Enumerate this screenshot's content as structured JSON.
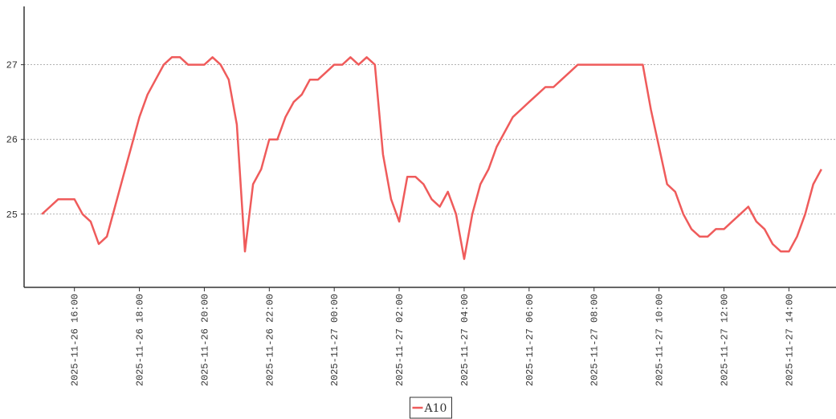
{
  "chart_data": {
    "type": "line",
    "x": [
      "2025-11-26 15:00",
      "2025-11-26 15:15",
      "2025-11-26 15:30",
      "2025-11-26 15:45",
      "2025-11-26 16:00",
      "2025-11-26 16:15",
      "2025-11-26 16:30",
      "2025-11-26 16:45",
      "2025-11-26 17:00",
      "2025-11-26 17:15",
      "2025-11-26 17:30",
      "2025-11-26 17:45",
      "2025-11-26 18:00",
      "2025-11-26 18:15",
      "2025-11-26 18:30",
      "2025-11-26 18:45",
      "2025-11-26 19:00",
      "2025-11-26 19:15",
      "2025-11-26 19:30",
      "2025-11-26 19:45",
      "2025-11-26 20:00",
      "2025-11-26 20:15",
      "2025-11-26 20:30",
      "2025-11-26 20:45",
      "2025-11-26 21:00",
      "2025-11-26 21:15",
      "2025-11-26 21:30",
      "2025-11-26 21:45",
      "2025-11-26 22:00",
      "2025-11-26 22:15",
      "2025-11-26 22:30",
      "2025-11-26 22:45",
      "2025-11-26 23:00",
      "2025-11-26 23:15",
      "2025-11-26 23:30",
      "2025-11-26 23:45",
      "2025-11-27 00:00",
      "2025-11-27 00:15",
      "2025-11-27 00:30",
      "2025-11-27 00:45",
      "2025-11-27 01:00",
      "2025-11-27 01:15",
      "2025-11-27 01:30",
      "2025-11-27 01:45",
      "2025-11-27 02:00",
      "2025-11-27 02:15",
      "2025-11-27 02:30",
      "2025-11-27 02:45",
      "2025-11-27 03:00",
      "2025-11-27 03:15",
      "2025-11-27 03:30",
      "2025-11-27 03:45",
      "2025-11-27 04:00",
      "2025-11-27 04:15",
      "2025-11-27 04:30",
      "2025-11-27 04:45",
      "2025-11-27 05:00",
      "2025-11-27 05:15",
      "2025-11-27 05:30",
      "2025-11-27 05:45",
      "2025-11-27 06:00",
      "2025-11-27 06:15",
      "2025-11-27 06:30",
      "2025-11-27 06:45",
      "2025-11-27 07:00",
      "2025-11-27 07:15",
      "2025-11-27 07:30",
      "2025-11-27 07:45",
      "2025-11-27 08:00",
      "2025-11-27 08:15",
      "2025-11-27 08:30",
      "2025-11-27 08:45",
      "2025-11-27 09:00",
      "2025-11-27 09:15",
      "2025-11-27 09:30",
      "2025-11-27 09:45",
      "2025-11-27 10:00",
      "2025-11-27 10:15",
      "2025-11-27 10:30",
      "2025-11-27 10:45",
      "2025-11-27 11:00",
      "2025-11-27 11:15",
      "2025-11-27 11:30",
      "2025-11-27 11:45",
      "2025-11-27 12:00",
      "2025-11-27 12:15",
      "2025-11-27 12:30",
      "2025-11-27 12:45",
      "2025-11-27 13:00",
      "2025-11-27 13:15",
      "2025-11-27 13:30",
      "2025-11-27 13:45",
      "2025-11-27 14:00",
      "2025-11-27 14:15",
      "2025-11-27 14:30",
      "2025-11-27 14:45",
      "2025-11-27 15:00"
    ],
    "series": [
      {
        "name": "A10",
        "color": "#ef5b5b",
        "values": [
          25.0,
          25.1,
          25.2,
          25.2,
          25.2,
          25.0,
          24.9,
          24.6,
          24.7,
          25.1,
          25.5,
          25.9,
          26.3,
          26.6,
          26.8,
          27.0,
          27.1,
          27.1,
          27.0,
          27.0,
          27.0,
          27.1,
          27.0,
          26.8,
          26.2,
          24.5,
          25.4,
          25.6,
          26.0,
          26.0,
          26.3,
          26.5,
          26.6,
          26.8,
          26.8,
          26.9,
          27.0,
          27.0,
          27.1,
          27.0,
          27.1,
          27.0,
          25.8,
          25.2,
          24.9,
          25.5,
          25.5,
          25.4,
          25.2,
          25.1,
          25.3,
          25.0,
          24.4,
          25.0,
          25.4,
          25.6,
          25.9,
          26.1,
          26.3,
          26.4,
          26.5,
          26.6,
          26.7,
          26.7,
          26.8,
          26.9,
          27.0,
          27.0,
          27.0,
          27.0,
          27.0,
          27.0,
          27.0,
          27.0,
          27.0,
          26.4,
          25.9,
          25.4,
          25.3,
          25.0,
          24.8,
          24.7,
          24.7,
          24.8,
          24.8,
          24.9,
          25.0,
          25.1,
          24.9,
          24.8,
          24.6,
          24.5,
          24.5,
          24.7,
          25.0,
          25.4,
          25.6
        ]
      }
    ],
    "xlim": [
      "2025-11-26 14:27",
      "2025-11-27 15:27"
    ],
    "xticks": [
      "2025-11-26 16:00",
      "2025-11-26 18:00",
      "2025-11-26 20:00",
      "2025-11-26 22:00",
      "2025-11-27 00:00",
      "2025-11-27 02:00",
      "2025-11-27 04:00",
      "2025-11-27 06:00",
      "2025-11-27 08:00",
      "2025-11-27 10:00",
      "2025-11-27 12:00",
      "2025-11-27 14:00"
    ],
    "ylim": [
      24.02,
      27.78
    ],
    "yticks": [
      25,
      26,
      27
    ],
    "grid": true,
    "legend": "bottom"
  }
}
